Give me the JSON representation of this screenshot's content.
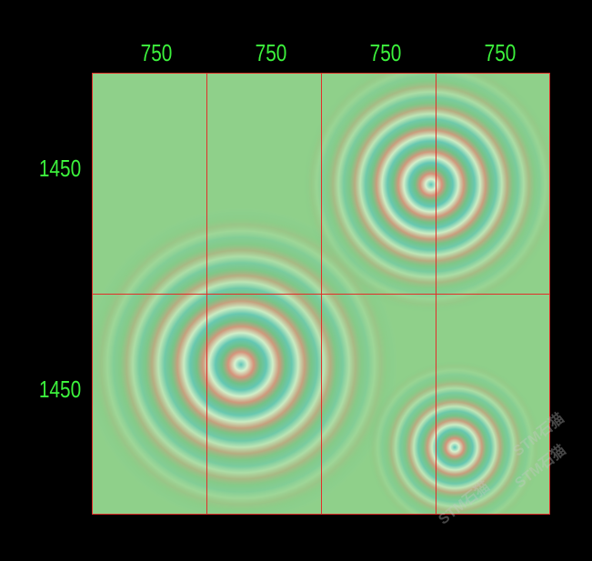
{
  "dimensions": {
    "top": [
      "750",
      "750",
      "750",
      "750"
    ],
    "left": [
      "1450",
      "1450"
    ]
  },
  "colors": {
    "label": "#3cf23c",
    "grid": "#e0302a",
    "background": "#8fd08a"
  },
  "watermark": "STM石猫"
}
